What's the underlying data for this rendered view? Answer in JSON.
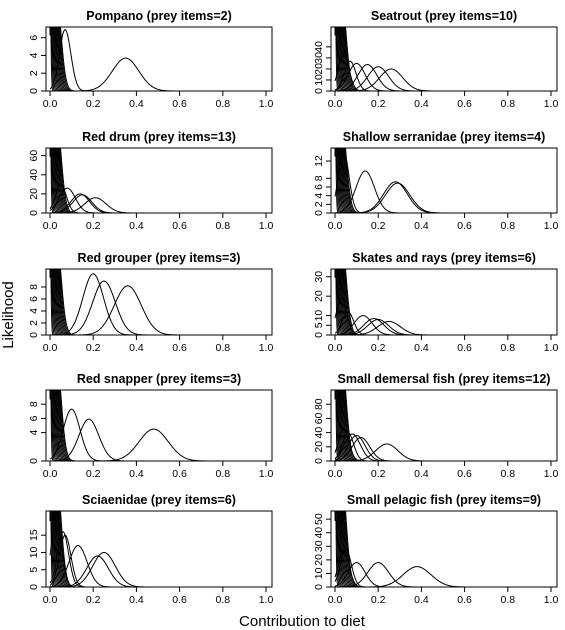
{
  "figure": {
    "xlabel": "Contribution to diet",
    "ylabel": "Likelihood"
  },
  "chart_data": [
    {
      "type": "line",
      "title": "Pompano (prey items=2)",
      "xlim": [
        0,
        1
      ],
      "ylim": [
        0,
        7.2
      ],
      "xticks": [
        "0.0",
        "0.2",
        "0.4",
        "0.6",
        "0.8",
        "1.0"
      ],
      "yticks": [
        {
          "value": 0,
          "label": "0"
        },
        {
          "value": 2,
          "label": "2"
        },
        {
          "value": 4,
          "label": "4"
        },
        {
          "value": 6,
          "label": "6"
        }
      ],
      "curves": [
        {
          "peak_x": 0.07,
          "peak_y": 6.9
        },
        {
          "peak_x": 0.35,
          "peak_y": 3.7
        }
      ],
      "clustered_near_zero": true
    },
    {
      "type": "line",
      "title": "Seatrout (prey items=10)",
      "xlim": [
        0,
        1
      ],
      "ylim": [
        0,
        58
      ],
      "xticks": [
        "0.0",
        "0.2",
        "0.4",
        "0.6",
        "0.8",
        "1.0"
      ],
      "yticks": [
        {
          "value": 0,
          "label": "0"
        },
        {
          "value": 10,
          "label": "10"
        },
        {
          "value": 20,
          "label": "20"
        },
        {
          "value": 30,
          "label": "30"
        },
        {
          "value": 40,
          "label": "40"
        }
      ],
      "curves": [
        {
          "peak_x": 0.04,
          "peak_y": 34
        },
        {
          "peak_x": 0.07,
          "peak_y": 27
        },
        {
          "peak_x": 0.1,
          "peak_y": 25
        },
        {
          "peak_x": 0.15,
          "peak_y": 24
        },
        {
          "peak_x": 0.2,
          "peak_y": 22
        },
        {
          "peak_x": 0.26,
          "peak_y": 20
        }
      ],
      "clustered_near_zero": true
    },
    {
      "type": "line",
      "title": "Red drum (prey items=13)",
      "xlim": [
        0,
        1
      ],
      "ylim": [
        0,
        68
      ],
      "xticks": [
        "0.0",
        "0.2",
        "0.4",
        "0.6",
        "0.8",
        "1.0"
      ],
      "yticks": [
        {
          "value": 0,
          "label": "0"
        },
        {
          "value": 20,
          "label": "20"
        },
        {
          "value": 40,
          "label": "40"
        },
        {
          "value": 60,
          "label": "60"
        }
      ],
      "curves": [
        {
          "peak_x": 0.05,
          "peak_y": 30
        },
        {
          "peak_x": 0.08,
          "peak_y": 26
        },
        {
          "peak_x": 0.14,
          "peak_y": 20
        },
        {
          "peak_x": 0.15,
          "peak_y": 19
        },
        {
          "peak_x": 0.21,
          "peak_y": 16
        }
      ],
      "clustered_near_zero": true
    },
    {
      "type": "line",
      "title": "Shallow serranidae (prey items=4)",
      "xlim": [
        0,
        1
      ],
      "ylim": [
        0,
        15
      ],
      "xticks": [
        "0.0",
        "0.2",
        "0.4",
        "0.6",
        "0.8",
        "1.0"
      ],
      "yticks": [
        {
          "value": 0,
          "label": "0"
        },
        {
          "value": 2,
          "label": "2"
        },
        {
          "value": 4,
          "label": "4"
        },
        {
          "value": 6,
          "label": "6"
        },
        {
          "value": 8,
          "label": "8"
        },
        {
          "value": 12,
          "label": "12"
        }
      ],
      "curves": [
        {
          "peak_x": 0.04,
          "peak_y": 14.2
        },
        {
          "peak_x": 0.14,
          "peak_y": 9.7
        },
        {
          "peak_x": 0.28,
          "peak_y": 7.2
        },
        {
          "peak_x": 0.29,
          "peak_y": 6.9
        }
      ],
      "clustered_near_zero": true
    },
    {
      "type": "line",
      "title": "Red grouper (prey items=3)",
      "xlim": [
        0,
        1
      ],
      "ylim": [
        0,
        11
      ],
      "xticks": [
        "0.0",
        "0.2",
        "0.4",
        "0.6",
        "0.8",
        "1.0"
      ],
      "yticks": [
        {
          "value": 0,
          "label": "0"
        },
        {
          "value": 2,
          "label": "2"
        },
        {
          "value": 4,
          "label": "4"
        },
        {
          "value": 6,
          "label": "6"
        },
        {
          "value": 8,
          "label": "8"
        }
      ],
      "curves": [
        {
          "peak_x": 0.2,
          "peak_y": 10.2
        },
        {
          "peak_x": 0.25,
          "peak_y": 9.0
        },
        {
          "peak_x": 0.36,
          "peak_y": 8.2
        }
      ],
      "clustered_near_zero": true
    },
    {
      "type": "line",
      "title": "Skates and rays (prey items=6)",
      "xlim": [
        0,
        1
      ],
      "ylim": [
        0,
        34
      ],
      "xticks": [
        "0.0",
        "0.2",
        "0.4",
        "0.6",
        "0.8",
        "1.0"
      ],
      "yticks": [
        {
          "value": 0,
          "label": "0"
        },
        {
          "value": 5,
          "label": "5"
        },
        {
          "value": 10,
          "label": "10"
        },
        {
          "value": 20,
          "label": "20"
        },
        {
          "value": 30,
          "label": "30"
        }
      ],
      "curves": [
        {
          "peak_x": 0.03,
          "peak_y": 19
        },
        {
          "peak_x": 0.06,
          "peak_y": 12
        },
        {
          "peak_x": 0.13,
          "peak_y": 10
        },
        {
          "peak_x": 0.18,
          "peak_y": 8.5
        },
        {
          "peak_x": 0.2,
          "peak_y": 8
        },
        {
          "peak_x": 0.25,
          "peak_y": 7
        }
      ],
      "clustered_near_zero": true
    },
    {
      "type": "line",
      "title": "Red snapper (prey items=3)",
      "xlim": [
        0,
        1
      ],
      "ylim": [
        0,
        10
      ],
      "xticks": [
        "0.0",
        "0.2",
        "0.4",
        "0.6",
        "0.8",
        "1.0"
      ],
      "yticks": [
        {
          "value": 0,
          "label": "0"
        },
        {
          "value": 4,
          "label": "4"
        },
        {
          "value": 6,
          "label": "6"
        },
        {
          "value": 8,
          "label": "8"
        }
      ],
      "curves": [
        {
          "peak_x": 0.1,
          "peak_y": 7.3
        },
        {
          "peak_x": 0.18,
          "peak_y": 5.9
        },
        {
          "peak_x": 0.48,
          "peak_y": 4.5
        }
      ],
      "clustered_near_zero": true
    },
    {
      "type": "line",
      "title": "Small demersal fish (prey items=12)",
      "xlim": [
        0,
        1
      ],
      "ylim": [
        0,
        100
      ],
      "xticks": [
        "0.0",
        "0.2",
        "0.4",
        "0.6",
        "0.8",
        "1.0"
      ],
      "yticks": [
        {
          "value": 0,
          "label": "0"
        },
        {
          "value": 20,
          "label": "20"
        },
        {
          "value": 40,
          "label": "40"
        },
        {
          "value": 60,
          "label": "60"
        },
        {
          "value": 80,
          "label": "80"
        }
      ],
      "curves": [
        {
          "peak_x": 0.04,
          "peak_y": 44
        },
        {
          "peak_x": 0.06,
          "peak_y": 40
        },
        {
          "peak_x": 0.08,
          "peak_y": 38
        },
        {
          "peak_x": 0.1,
          "peak_y": 36
        },
        {
          "peak_x": 0.12,
          "peak_y": 33
        },
        {
          "peak_x": 0.24,
          "peak_y": 24
        }
      ],
      "clustered_near_zero": true
    },
    {
      "type": "line",
      "title": "Sciaenidae (prey items=6)",
      "xlim": [
        0,
        1
      ],
      "ylim": [
        0,
        22
      ],
      "xticks": [
        "0.0",
        "0.2",
        "0.4",
        "0.6",
        "0.8",
        "1.0"
      ],
      "yticks": [
        {
          "value": 0,
          "label": "0"
        },
        {
          "value": 5,
          "label": "5"
        },
        {
          "value": 10,
          "label": "10"
        },
        {
          "value": 15,
          "label": "15"
        }
      ],
      "curves": [
        {
          "peak_x": 0.03,
          "peak_y": 20
        },
        {
          "peak_x": 0.06,
          "peak_y": 16
        },
        {
          "peak_x": 0.07,
          "peak_y": 15
        },
        {
          "peak_x": 0.13,
          "peak_y": 12
        },
        {
          "peak_x": 0.22,
          "peak_y": 9
        },
        {
          "peak_x": 0.25,
          "peak_y": 10
        }
      ],
      "clustered_near_zero": true
    },
    {
      "type": "line",
      "title": "Small pelagic fish (prey items=9)",
      "xlim": [
        0,
        1
      ],
      "ylim": [
        0,
        56
      ],
      "xticks": [
        "0.0",
        "0.2",
        "0.4",
        "0.6",
        "0.8",
        "1.0"
      ],
      "yticks": [
        {
          "value": 0,
          "label": "0"
        },
        {
          "value": 10,
          "label": "10"
        },
        {
          "value": 20,
          "label": "20"
        },
        {
          "value": 30,
          "label": "30"
        },
        {
          "value": 40,
          "label": "40"
        },
        {
          "value": 50,
          "label": "50"
        }
      ],
      "curves": [
        {
          "peak_x": 0.04,
          "peak_y": 27
        },
        {
          "peak_x": 0.05,
          "peak_y": 28
        },
        {
          "peak_x": 0.1,
          "peak_y": 18
        },
        {
          "peak_x": 0.2,
          "peak_y": 18
        },
        {
          "peak_x": 0.38,
          "peak_y": 15
        }
      ],
      "clustered_near_zero": true
    }
  ]
}
